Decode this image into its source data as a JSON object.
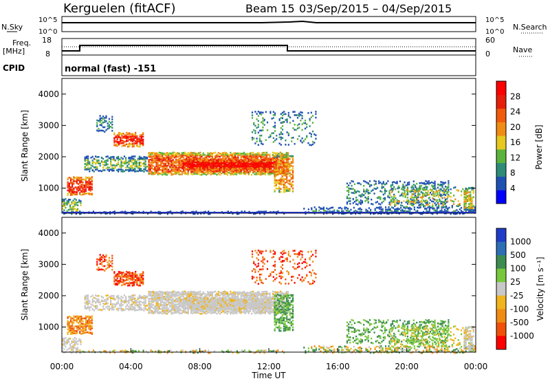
{
  "header": {
    "station": "Kerguelen (fitACF)",
    "beam_label": "Beam 15",
    "date_range": "03/Sep/2015 – 04/Sep/2015",
    "program": "normal (fast) -151"
  },
  "chart_data": [
    {
      "type": "line",
      "panel": "noise",
      "left_label": "N.Sky",
      "right_label": "N.Search",
      "left_ticks": [
        "10^5",
        "10^0"
      ],
      "right_ticks": [
        "10^5",
        "10^0"
      ],
      "series": [
        {
          "name": "N.Sky",
          "x_hours": [
            0,
            12,
            14,
            24
          ],
          "values": [
            3.2,
            3.3,
            3.6,
            3.1
          ]
        }
      ]
    },
    {
      "type": "line",
      "panel": "frequency",
      "left_label": "Freq.",
      "left_unit": "[MHz]",
      "left_ticks": [
        "18",
        "8"
      ],
      "right_label": "Nave",
      "right_ticks": [
        "60",
        "0"
      ],
      "ylim": [
        8,
        18
      ],
      "series": [
        {
          "name": "Freq.",
          "x_hours": [
            0,
            1,
            1,
            13,
            13,
            24
          ],
          "values": [
            10,
            10,
            12.2,
            12.2,
            10,
            10
          ]
        },
        {
          "name": "Nave",
          "x_hours": [
            0,
            24
          ],
          "values": [
            46,
            46
          ]
        }
      ]
    },
    {
      "type": "heatmap",
      "panel": "power",
      "ylabel": "Slant Range [km]",
      "colorbar_label": "Power [dB]",
      "colorbar_ticks": [
        "28",
        "24",
        "20",
        "16",
        "12",
        "8",
        "4"
      ],
      "ylim": [
        200,
        4500
      ],
      "yticks": [
        "1000",
        "2000",
        "3000",
        "4000"
      ],
      "colorbar_colors": [
        "#0000ff",
        "#1e50b4",
        "#2d8c78",
        "#5ab43c",
        "#e6c81e",
        "#f08c14",
        "#f05a0a",
        "#e61e0a",
        "#ff0000"
      ]
    },
    {
      "type": "heatmap",
      "panel": "velocity",
      "ylabel": "Slant Range [km]",
      "colorbar_label": "Velocity [m s⁻¹]",
      "colorbar_ticks": [
        "1000",
        "500",
        "100",
        "25",
        "-25",
        "-100",
        "-500",
        "-1000"
      ],
      "ylim": [
        200,
        4500
      ],
      "yticks": [
        "1000",
        "2000",
        "3000",
        "4000"
      ],
      "xlabel": "Time UT",
      "xticks": [
        "00:00",
        "04:00",
        "08:00",
        "12:00",
        "16:00",
        "20:00",
        "00:00"
      ],
      "colorbar_colors": [
        "#1e3cc8",
        "#2d6eb4",
        "#3c8c50",
        "#78c83c",
        "#c8c8c8",
        "#f0b41e",
        "#f08c14",
        "#f0500a",
        "#ff0000"
      ]
    }
  ],
  "palette": {
    "ground_scatter": "#c8c8c8",
    "frame": "#000000"
  }
}
